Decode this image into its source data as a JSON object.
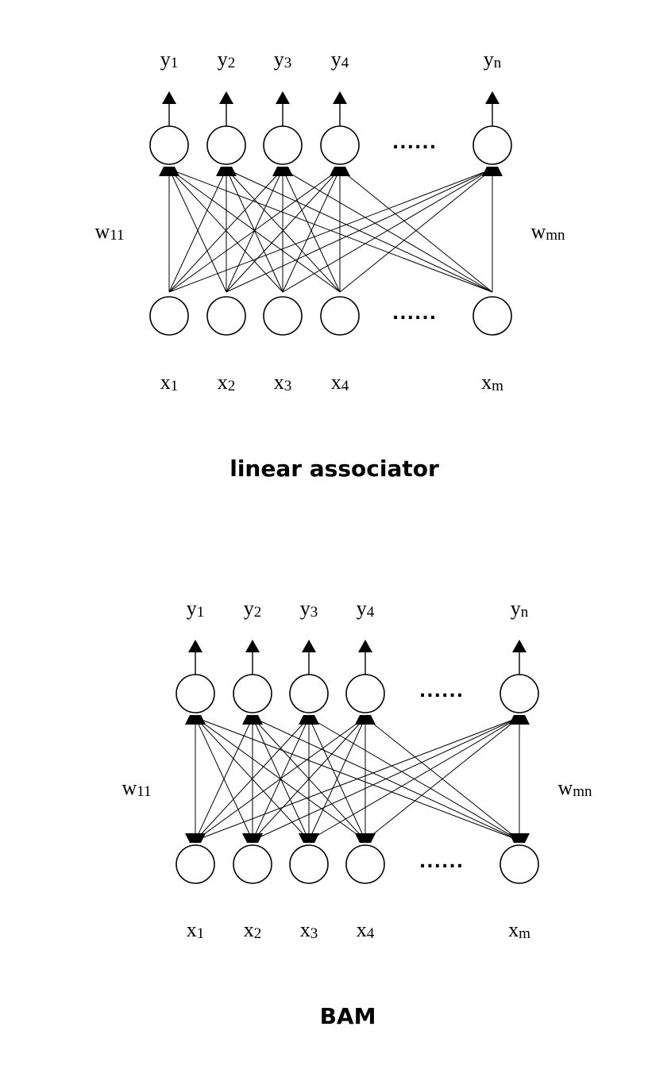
{
  "diagrams": [
    {
      "id": "linear-associator",
      "caption": "linear associator",
      "output_labels": [
        {
          "base": "y",
          "sub": "1"
        },
        {
          "base": "y",
          "sub": "2"
        },
        {
          "base": "y",
          "sub": "3"
        },
        {
          "base": "y",
          "sub": "4"
        },
        {
          "base": "y",
          "sub": "n"
        }
      ],
      "input_labels": [
        {
          "base": "x",
          "sub": "1"
        },
        {
          "base": "x",
          "sub": "2"
        },
        {
          "base": "x",
          "sub": "3"
        },
        {
          "base": "x",
          "sub": "4"
        },
        {
          "base": "x",
          "sub": "m"
        }
      ],
      "weight_left": {
        "base": "w",
        "sub": "11"
      },
      "weight_right": {
        "base": "w",
        "sub": "mn"
      },
      "ellipsis": "......",
      "bidirectional": false
    },
    {
      "id": "bam",
      "caption": "BAM",
      "output_labels": [
        {
          "base": "y",
          "sub": "1"
        },
        {
          "base": "y",
          "sub": "2"
        },
        {
          "base": "y",
          "sub": "3"
        },
        {
          "base": "y",
          "sub": "4"
        },
        {
          "base": "y",
          "sub": "n"
        }
      ],
      "input_labels": [
        {
          "base": "x",
          "sub": "1"
        },
        {
          "base": "x",
          "sub": "2"
        },
        {
          "base": "x",
          "sub": "3"
        },
        {
          "base": "x",
          "sub": "4"
        },
        {
          "base": "x",
          "sub": "m"
        }
      ],
      "weight_left": {
        "base": "w",
        "sub": "11"
      },
      "weight_right": {
        "base": "w",
        "sub": "mn"
      },
      "ellipsis": "......",
      "bidirectional": true
    }
  ]
}
